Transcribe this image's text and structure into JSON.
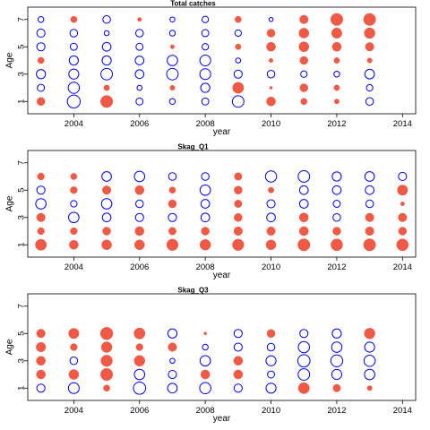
{
  "colors": {
    "positive": "#ee5a45",
    "negative": "#0000ee"
  },
  "chart_data": [
    {
      "type": "scatter",
      "title": "Total catches",
      "xlabel": "year",
      "ylabel": "Age",
      "xlim": [
        2002.6,
        2014.4
      ],
      "ylim": [
        0.1,
        7.9
      ],
      "x_ticks": [
        2004,
        2006,
        2008,
        2010,
        2012,
        2014
      ],
      "y_ticks": [
        1,
        3,
        5,
        7
      ],
      "grid": false,
      "years": [
        2003,
        2004,
        2005,
        2006,
        2007,
        2008,
        2009,
        2010,
        2011,
        2012,
        2013
      ],
      "ages": [
        1,
        2,
        3,
        4,
        5,
        6,
        7
      ],
      "residuals": [
        [
          0.8,
          -2.0,
          1.8,
          -0.6,
          -0.4,
          -0.6,
          -1.6,
          1.0,
          0.5,
          0.3,
          -0.7
        ],
        [
          -0.6,
          -1.5,
          0.4,
          -0.3,
          0.3,
          -1.0,
          1.5,
          0.1,
          0.8,
          0.4,
          -0.5
        ],
        [
          -1.0,
          -1.2,
          -1.6,
          -0.9,
          -1.6,
          -1.4,
          -0.8,
          -0.7,
          -0.5,
          -0.4,
          -1.1
        ],
        [
          0.5,
          -1.0,
          -1.0,
          -0.9,
          -1.3,
          -1.4,
          -0.3,
          0.2,
          0.8,
          0.4,
          0.3
        ],
        [
          -0.8,
          -0.6,
          -0.9,
          -0.6,
          0.2,
          -0.5,
          0.4,
          1.0,
          1.2,
          1.0,
          0.9
        ],
        [
          -0.8,
          -0.7,
          -0.3,
          -0.7,
          -0.4,
          -0.6,
          -0.5,
          0.8,
          1.2,
          1.3,
          1.4
        ],
        [
          -0.4,
          0.5,
          -0.7,
          0.2,
          -0.3,
          -0.5,
          0.5,
          -0.2,
          0.9,
          1.8,
          1.8
        ]
      ]
    },
    {
      "type": "scatter",
      "title": "Skag_Q1",
      "xlabel": "year",
      "ylabel": "Age",
      "xlim": [
        2002.6,
        2014.4
      ],
      "ylim": [
        0.1,
        7.9
      ],
      "x_ticks": [
        2004,
        2006,
        2008,
        2010,
        2012,
        2014
      ],
      "y_ticks": [
        1,
        3,
        5,
        7
      ],
      "grid": false,
      "years": [
        2003,
        2004,
        2005,
        2006,
        2007,
        2008,
        2009,
        2010,
        2011,
        2012,
        2013,
        2014
      ],
      "ages": [
        1,
        2,
        3,
        4,
        5,
        6
      ],
      "residuals": [
        [
          1.5,
          1.0,
          1.2,
          1.2,
          1.6,
          1.4,
          1.6,
          1.2,
          1.8,
          1.7,
          1.8,
          1.7
        ],
        [
          0.6,
          0.6,
          0.8,
          1.0,
          0.7,
          0.8,
          0.9,
          0.9,
          1.0,
          0.8,
          0.9,
          0.8
        ],
        [
          0.9,
          -1.3,
          -0.9,
          -0.8,
          -0.8,
          -0.9,
          0.8,
          -0.9,
          1.0,
          -0.7,
          0.9,
          0.9
        ],
        [
          -1.3,
          -0.5,
          -1.3,
          -0.7,
          0.8,
          -0.9,
          0.7,
          -0.8,
          -0.9,
          -0.6,
          -0.7,
          0.2
        ],
        [
          -0.8,
          0.6,
          0.9,
          1.0,
          0.5,
          -1.3,
          0.8,
          0.4,
          -0.9,
          -0.9,
          -0.9,
          1.3
        ],
        [
          0.6,
          0.5,
          -1.1,
          -1.3,
          -0.7,
          -0.7,
          0.7,
          -1.5,
          -1.6,
          -1.0,
          -1.1,
          -0.8
        ]
      ]
    },
    {
      "type": "scatter",
      "title": "Skag_Q3",
      "xlabel": "year",
      "ylabel": "Age",
      "xlim": [
        2002.6,
        2014.4
      ],
      "ylim": [
        0.1,
        7.9
      ],
      "x_ticks": [
        2004,
        2006,
        2008,
        2010,
        2012,
        2014
      ],
      "y_ticks": [
        1,
        3,
        5,
        7
      ],
      "grid": false,
      "years": [
        2003,
        2004,
        2005,
        2006,
        2007,
        2008,
        2009,
        2010,
        2011,
        2012,
        2013
      ],
      "ages": [
        1,
        2,
        3,
        4,
        5
      ],
      "residuals": [
        [
          -0.8,
          -1.4,
          0.5,
          -1.8,
          -1.1,
          -1.5,
          -0.8,
          -1.2,
          1.5,
          0.7,
          0.3
        ],
        [
          1.0,
          1.2,
          1.8,
          -1.3,
          -0.8,
          1.0,
          1.0,
          -0.6,
          -1.6,
          -1.2,
          -1.3
        ],
        [
          1.0,
          -0.7,
          1.6,
          1.4,
          -0.3,
          -1.3,
          1.0,
          -1.2,
          -1.8,
          -1.7,
          -1.5
        ],
        [
          1.1,
          0.6,
          1.4,
          0.6,
          0.9,
          -0.4,
          -0.8,
          -0.7,
          -1.5,
          -1.3,
          -1.2
        ],
        [
          0.9,
          1.3,
          1.9,
          1.5,
          -1.0,
          0.1,
          -0.8,
          0.8,
          -0.8,
          -1.0,
          1.4
        ]
      ]
    }
  ]
}
